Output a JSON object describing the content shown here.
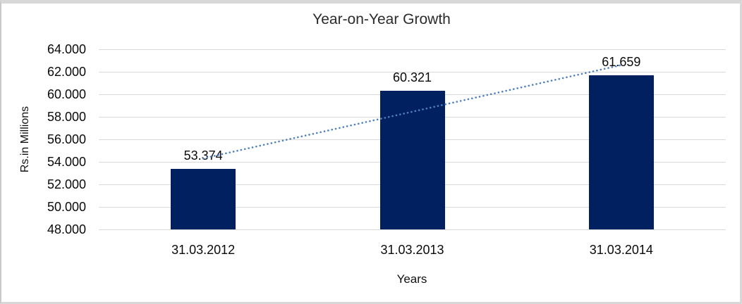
{
  "frame": {
    "background": "#ffffff",
    "border_color": "#d8d8d8"
  },
  "chart_data": {
    "type": "bar",
    "title": "Year-on-Year Growth",
    "xlabel": "Years",
    "ylabel": "Rs.in Millions",
    "categories": [
      "31.03.2012",
      "31.03.2013",
      "31.03.2014"
    ],
    "values": [
      53.374,
      60.321,
      61.659
    ],
    "value_labels": [
      "53.374",
      "60.321",
      "61.659"
    ],
    "ylim": [
      48,
      64
    ],
    "ytick_step": 2,
    "ytick_labels": [
      "64.000",
      "62.000",
      "60.000",
      "58.000",
      "56.000",
      "54.000",
      "52.000",
      "50.000",
      "48.000"
    ],
    "grid": true,
    "legend_position": "none",
    "bar_color": "#002060",
    "trendline": {
      "type": "linear",
      "style": "dotted",
      "color": "#4f81bd"
    }
  }
}
